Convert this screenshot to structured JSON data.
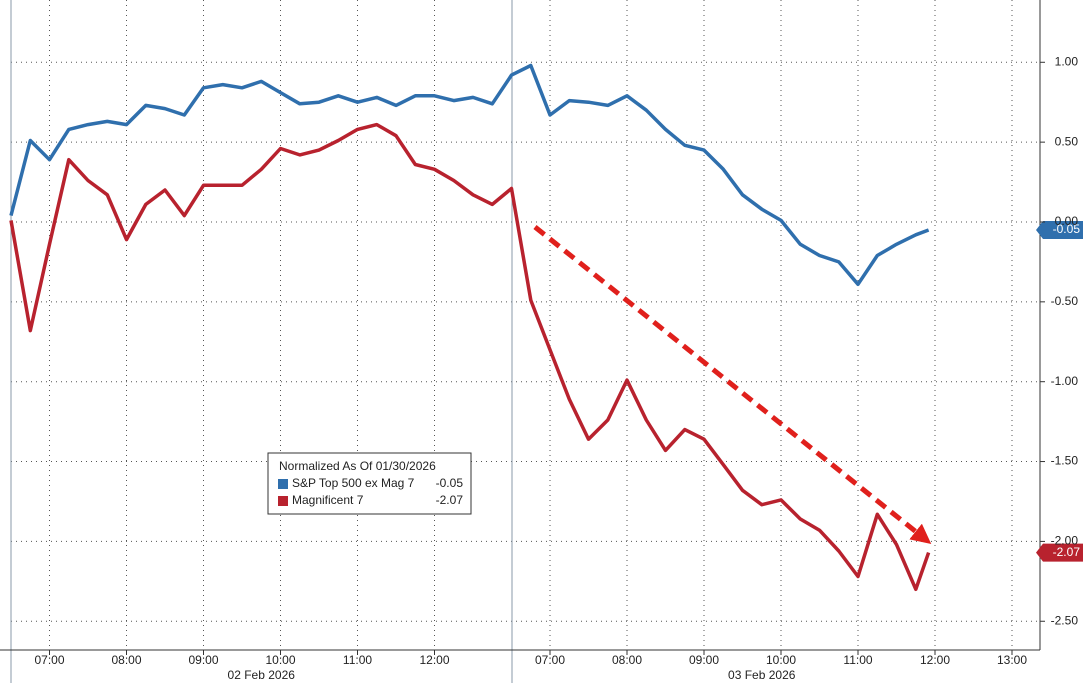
{
  "chart_data": {
    "type": "line",
    "legend_title": "Normalized As Of 01/30/2026",
    "days": [
      "02 Feb 2026",
      "03 Feb 2026"
    ],
    "x": [
      "02 Feb 2026 06:30",
      "02 Feb 2026 06:45",
      "02 Feb 2026 07:00",
      "02 Feb 2026 07:15",
      "02 Feb 2026 07:30",
      "02 Feb 2026 07:45",
      "02 Feb 2026 08:00",
      "02 Feb 2026 08:15",
      "02 Feb 2026 08:30",
      "02 Feb 2026 08:45",
      "02 Feb 2026 09:00",
      "02 Feb 2026 09:15",
      "02 Feb 2026 09:30",
      "02 Feb 2026 09:45",
      "02 Feb 2026 10:00",
      "02 Feb 2026 10:15",
      "02 Feb 2026 10:30",
      "02 Feb 2026 10:45",
      "02 Feb 2026 11:00",
      "02 Feb 2026 11:15",
      "02 Feb 2026 11:30",
      "02 Feb 2026 11:45",
      "02 Feb 2026 12:00",
      "02 Feb 2026 12:15",
      "02 Feb 2026 12:30",
      "02 Feb 2026 12:45",
      "03 Feb 2026 06:30",
      "03 Feb 2026 06:45",
      "03 Feb 2026 07:00",
      "03 Feb 2026 07:15",
      "03 Feb 2026 07:30",
      "03 Feb 2026 07:45",
      "03 Feb 2026 08:00",
      "03 Feb 2026 08:15",
      "03 Feb 2026 08:30",
      "03 Feb 2026 08:45",
      "03 Feb 2026 09:00",
      "03 Feb 2026 09:15",
      "03 Feb 2026 09:30",
      "03 Feb 2026 09:45",
      "03 Feb 2026 10:00",
      "03 Feb 2026 10:15",
      "03 Feb 2026 10:30",
      "03 Feb 2026 10:45",
      "03 Feb 2026 11:00",
      "03 Feb 2026 11:15",
      "03 Feb 2026 11:30",
      "03 Feb 2026 11:45",
      "03 Feb 2026 11:55"
    ],
    "series": [
      {
        "name": "S&P Top 500 ex Mag 7",
        "color": "#2f6fad",
        "values": [
          0.04,
          0.51,
          0.39,
          0.58,
          0.61,
          0.63,
          0.61,
          0.73,
          0.71,
          0.67,
          0.84,
          0.86,
          0.84,
          0.88,
          0.81,
          0.74,
          0.75,
          0.79,
          0.75,
          0.78,
          0.73,
          0.79,
          0.79,
          0.76,
          0.78,
          0.74,
          0.92,
          0.98,
          0.67,
          0.76,
          0.75,
          0.73,
          0.79,
          0.7,
          0.58,
          0.48,
          0.45,
          0.33,
          0.17,
          0.08,
          0.01,
          -0.14,
          -0.21,
          -0.25,
          -0.39,
          -0.21,
          -0.14,
          -0.08,
          -0.05
        ]
      },
      {
        "name": "Magnificent 7",
        "color": "#b8222e",
        "values": [
          0.01,
          -0.68,
          -0.14,
          0.39,
          0.26,
          0.17,
          -0.11,
          0.11,
          0.2,
          0.04,
          0.23,
          0.23,
          0.23,
          0.33,
          0.46,
          0.42,
          0.45,
          0.51,
          0.58,
          0.61,
          0.54,
          0.36,
          0.33,
          0.26,
          0.17,
          0.11,
          0.21,
          -0.49,
          -0.8,
          -1.11,
          -1.36,
          -1.24,
          -0.99,
          -1.24,
          -1.43,
          -1.3,
          -1.36,
          -1.52,
          -1.68,
          -1.77,
          -1.74,
          -1.86,
          -1.93,
          -2.06,
          -2.22,
          -1.83,
          -2.02,
          -2.3,
          -2.07
        ]
      }
    ],
    "ylim": [
      -2.68,
      1.39
    ],
    "yticks": [
      {
        "value": 1,
        "label": "1.00"
      },
      {
        "value": 0.5,
        "label": "0.50"
      },
      {
        "value": 0,
        "label": "0.00"
      },
      {
        "value": -0.5,
        "label": "-0.50"
      },
      {
        "value": -1,
        "label": "-1.00"
      },
      {
        "value": -1.5,
        "label": "-1.50"
      },
      {
        "value": -2,
        "label": "-2.00"
      },
      {
        "value": -2.5,
        "label": "-2.50"
      }
    ],
    "xticks": [
      {
        "value": "02 Feb 2026 07:00",
        "label": "07:00"
      },
      {
        "value": "02 Feb 2026 08:00",
        "label": "08:00"
      },
      {
        "value": "02 Feb 2026 09:00",
        "label": "09:00"
      },
      {
        "value": "02 Feb 2026 10:00",
        "label": "10:00"
      },
      {
        "value": "02 Feb 2026 11:00",
        "label": "11:00"
      },
      {
        "value": "02 Feb 2026 12:00",
        "label": "12:00"
      },
      {
        "value": "03 Feb 2026 07:00",
        "label": "07:00"
      },
      {
        "value": "03 Feb 2026 08:00",
        "label": "08:00"
      },
      {
        "value": "03 Feb 2026 09:00",
        "label": "09:00"
      },
      {
        "value": "03 Feb 2026 10:00",
        "label": "10:00"
      },
      {
        "value": "03 Feb 2026 11:00",
        "label": "11:00"
      },
      {
        "value": "03 Feb 2026 12:00",
        "label": "12:00"
      },
      {
        "value": "03 Feb 2026 13:00",
        "label": "13:00"
      }
    ],
    "grid": true
  }
}
